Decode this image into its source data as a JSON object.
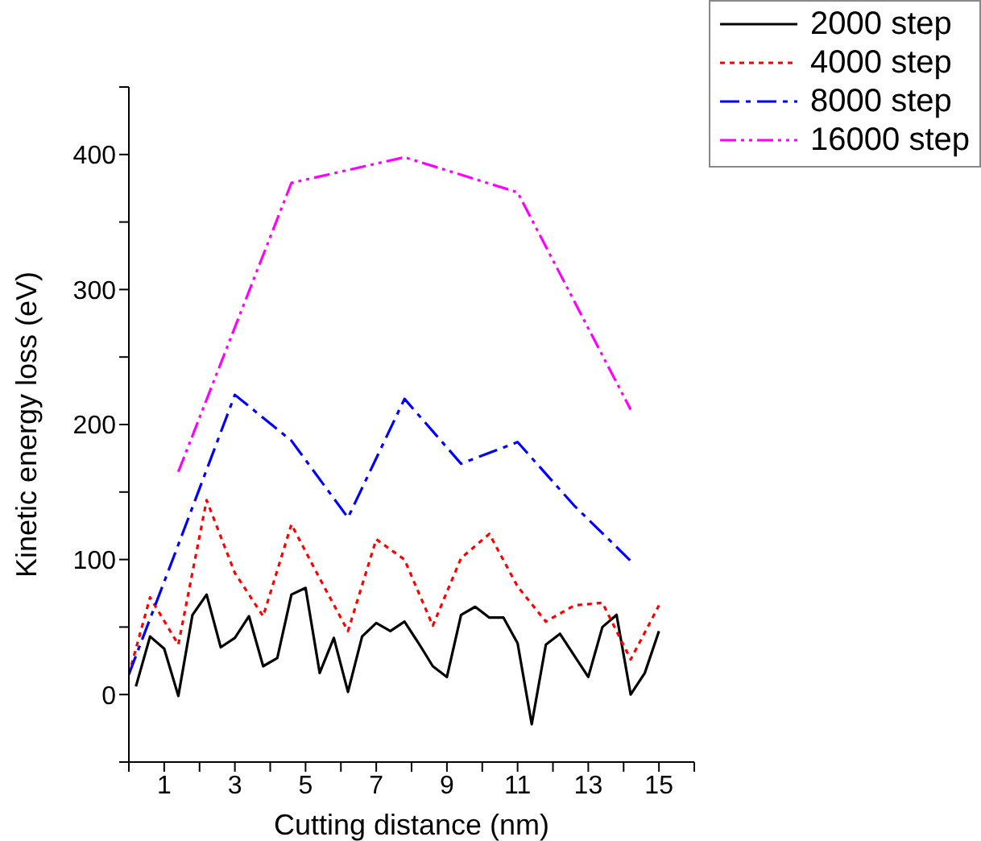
{
  "chart_data": {
    "type": "line",
    "xlabel": "Cutting distance (nm)",
    "ylabel": "Kinetic energy loss (eV)",
    "xlim": [
      0,
      16
    ],
    "xticks": [
      {
        "value": 0,
        "label": null
      },
      1,
      {
        "value": 2,
        "label": null
      },
      3,
      {
        "value": 4,
        "label": null
      },
      5,
      {
        "value": 6,
        "label": null
      },
      7,
      {
        "value": 8,
        "label": null
      },
      9,
      {
        "value": 10,
        "label": null
      },
      11,
      {
        "value": 12,
        "label": null
      },
      13,
      {
        "value": 14,
        "label": null
      },
      15,
      {
        "value": 16,
        "label": null
      }
    ],
    "ylim": [
      -50,
      450
    ],
    "yticks": [
      {
        "value": -50,
        "label": null
      },
      0,
      {
        "value": 50,
        "label": null
      },
      100,
      {
        "value": 150,
        "label": null
      },
      200,
      {
        "value": 250,
        "label": null
      },
      300,
      {
        "value": 350,
        "label": null
      },
      400,
      {
        "value": 450,
        "label": null
      }
    ],
    "grid": false,
    "legend": "top right",
    "marker": "none",
    "series": [
      {
        "name": "2000 step",
        "color": "#000000",
        "line_style": "solid",
        "x": [
          0.2,
          0.6,
          1.0,
          1.4,
          1.8,
          2.2,
          2.6,
          3.0,
          3.4,
          3.8,
          4.2,
          4.6,
          5.0,
          5.4,
          5.8,
          6.2,
          6.6,
          7.0,
          7.4,
          7.8,
          8.2,
          8.6,
          9.0,
          9.4,
          9.8,
          10.2,
          10.6,
          11.0,
          11.4,
          11.8,
          12.2,
          12.6,
          13.0,
          13.4,
          13.8,
          14.2,
          14.6,
          15.0
        ],
        "values": [
          6,
          43,
          34,
          -1,
          59,
          74,
          35,
          42,
          58,
          21,
          27,
          74,
          79,
          16,
          42,
          2,
          43,
          53,
          47,
          54,
          38,
          21,
          13,
          59,
          65,
          57,
          57,
          38,
          -22,
          37,
          45,
          29,
          13,
          50,
          59,
          0,
          16,
          47
        ]
      },
      {
        "name": "4000 step",
        "color": "#ff0000",
        "line_style": "dotted",
        "x": [
          0,
          0.6,
          1.4,
          2.2,
          3.0,
          3.8,
          4.6,
          5.4,
          6.2,
          7.0,
          7.8,
          8.6,
          9.4,
          10.2,
          11.0,
          11.8,
          12.6,
          13.4,
          14.2,
          15.0
        ],
        "values": [
          15,
          72,
          37,
          144,
          90,
          58,
          126,
          86,
          47,
          115,
          100,
          51,
          101,
          119,
          80,
          54,
          66,
          68,
          26,
          66
        ]
      },
      {
        "name": "8000 step",
        "color": "#0000ff",
        "line_style": "dashdot",
        "x": [
          0,
          1.4,
          3.0,
          4.6,
          6.2,
          7.8,
          9.4,
          11.0,
          12.6,
          14.2
        ],
        "values": [
          15,
          111,
          222,
          188,
          131,
          219,
          171,
          187,
          140,
          99
        ]
      },
      {
        "name": "16000 step",
        "color": "#ff00ff",
        "line_style": "dashdotdot",
        "x": [
          1.4,
          4.6,
          7.8,
          11.0,
          14.2
        ],
        "values": [
          165,
          379,
          398,
          372,
          211
        ]
      }
    ]
  }
}
